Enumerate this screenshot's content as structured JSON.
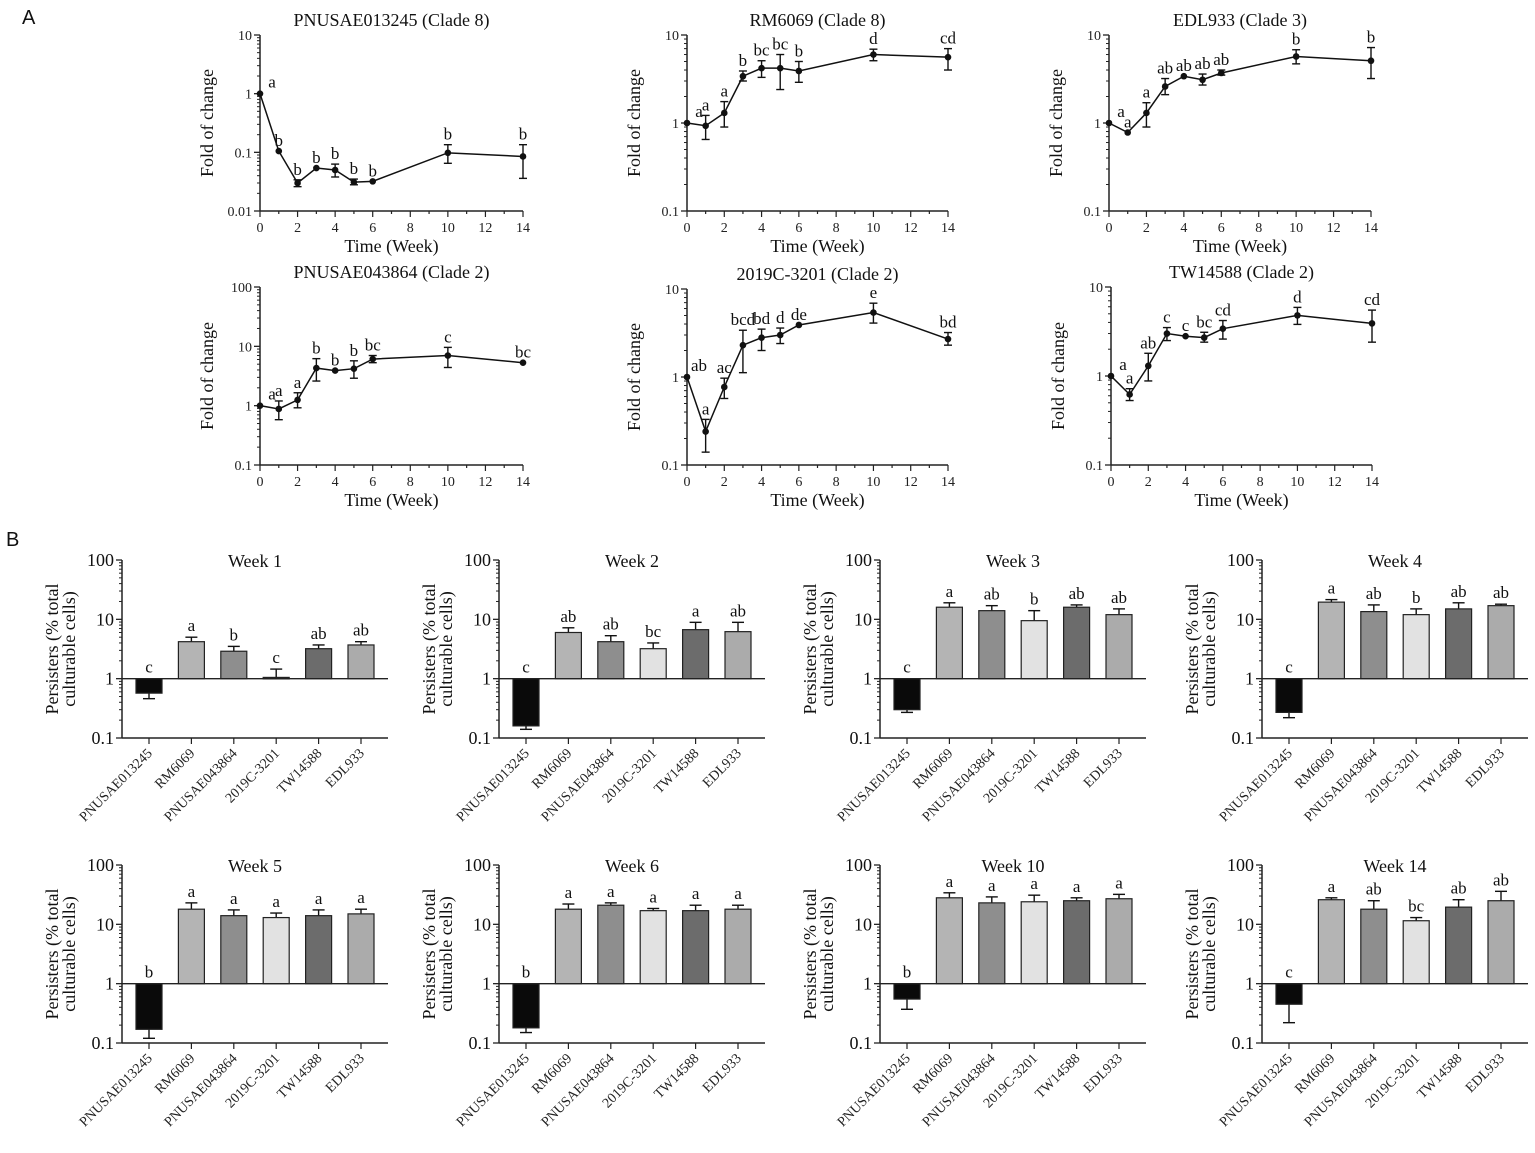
{
  "panels": {
    "a": "A",
    "b": "B"
  },
  "chart_data": {
    "line_charts": [
      {
        "type": "line",
        "title": "PNUSAE013245 (Clade 8)",
        "xlabel": "Time (Week)",
        "ylabel": "Fold of change",
        "yscale": "log",
        "ylim": [
          0.01,
          10
        ],
        "xlim": [
          0,
          14
        ],
        "yticks": [
          "0.01",
          "0.1",
          "1",
          "10"
        ],
        "xticks": [
          "0",
          "2",
          "4",
          "6",
          "8",
          "10",
          "12",
          "14"
        ],
        "x": [
          0,
          1,
          2,
          3,
          4,
          5,
          6,
          10,
          14
        ],
        "y": [
          1,
          0.105,
          0.03,
          0.054,
          0.05,
          0.031,
          0.032,
          0.098,
          0.085
        ],
        "err": [
          [
            1,
            1
          ],
          [
            0.105,
            0.105
          ],
          [
            0.026,
            0.034
          ],
          [
            0.054,
            0.054
          ],
          [
            0.038,
            0.063
          ],
          [
            0.028,
            0.035
          ],
          [
            0.032,
            0.032
          ],
          [
            0.065,
            0.135
          ],
          [
            0.036,
            0.135
          ]
        ],
        "letters": [
          "a",
          "b",
          "b",
          "b",
          "b",
          "b",
          "b",
          "b",
          "b"
        ]
      },
      {
        "type": "line",
        "title": "RM6069 (Clade 8)",
        "xlabel": "Time (Week)",
        "ylabel": "Fold of change",
        "yscale": "log",
        "ylim": [
          0.1,
          10
        ],
        "xlim": [
          0,
          14
        ],
        "yticks": [
          "0.1",
          "1",
          "10"
        ],
        "xticks": [
          "0",
          "2",
          "4",
          "6",
          "8",
          "10",
          "12",
          "14"
        ],
        "x": [
          0,
          1,
          2,
          3,
          4,
          5,
          6,
          10,
          14
        ],
        "y": [
          1,
          0.93,
          1.3,
          3.4,
          4.2,
          4.2,
          3.9,
          6.0,
          5.6
        ],
        "err": [
          [
            1,
            1
          ],
          [
            0.65,
            1.22
          ],
          [
            0.9,
            1.75
          ],
          [
            3.0,
            3.9
          ],
          [
            3.3,
            5.1
          ],
          [
            2.4,
            6.0
          ],
          [
            2.9,
            5.0
          ],
          [
            5.1,
            6.9
          ],
          [
            4.0,
            7.0
          ]
        ],
        "letters": [
          "a",
          "a",
          "a",
          "b",
          "bc",
          "bc",
          "b",
          "d",
          "cd"
        ]
      },
      {
        "type": "line",
        "title": "EDL933 (Clade 3)",
        "xlabel": "Time (Week)",
        "ylabel": "Fold of change",
        "yscale": "log",
        "ylim": [
          0.1,
          10
        ],
        "xlim": [
          0,
          14
        ],
        "yticks": [
          "0.1",
          "1",
          "10"
        ],
        "xticks": [
          "0",
          "2",
          "4",
          "6",
          "8",
          "10",
          "12",
          "14"
        ],
        "x": [
          0,
          1,
          2,
          3,
          4,
          5,
          6,
          10,
          14
        ],
        "y": [
          1,
          0.78,
          1.3,
          2.6,
          3.4,
          3.1,
          3.7,
          5.7,
          5.1
        ],
        "err": [
          [
            1,
            1
          ],
          [
            0.78,
            0.78
          ],
          [
            0.9,
            1.7
          ],
          [
            2.1,
            3.2
          ],
          [
            3.4,
            3.4
          ],
          [
            2.7,
            3.6
          ],
          [
            3.5,
            4.0
          ],
          [
            4.7,
            6.8
          ],
          [
            3.2,
            7.2
          ]
        ],
        "letters": [
          "a",
          "a",
          "a",
          "ab",
          "ab",
          "ab",
          "ab",
          "b",
          "b"
        ]
      },
      {
        "type": "line",
        "title": "PNUSAE043864 (Clade 2)",
        "xlabel": "Time (Week)",
        "ylabel": "Fold of change",
        "yscale": "log",
        "ylim": [
          0.1,
          100
        ],
        "xlim": [
          0,
          14
        ],
        "yticks": [
          "0.1",
          "1",
          "10",
          "100"
        ],
        "xticks": [
          "0",
          "2",
          "4",
          "6",
          "8",
          "10",
          "12",
          "14"
        ],
        "x": [
          0,
          1,
          2,
          3,
          4,
          5,
          6,
          10,
          14
        ],
        "y": [
          1,
          0.88,
          1.25,
          4.3,
          3.9,
          4.2,
          6.1,
          7.0,
          5.3
        ],
        "err": [
          [
            1,
            1
          ],
          [
            0.58,
            1.2
          ],
          [
            0.92,
            1.65
          ],
          [
            2.6,
            6.2
          ],
          [
            3.9,
            3.9
          ],
          [
            2.9,
            5.7
          ],
          [
            5.3,
            7.0
          ],
          [
            4.4,
            9.6
          ],
          [
            5.3,
            5.3
          ]
        ],
        "letters": [
          "a",
          "a",
          "a",
          "b",
          "b",
          "b",
          "bc",
          "c",
          "bc"
        ]
      },
      {
        "type": "line",
        "title": "2019C-3201 (Clade 2)",
        "xlabel": "Time (Week)",
        "ylabel": "Fold of change",
        "yscale": "log",
        "ylim": [
          0.1,
          10
        ],
        "xlim": [
          0,
          14
        ],
        "yticks": [
          "0.1",
          "1",
          "10"
        ],
        "xticks": [
          "0",
          "2",
          "4",
          "6",
          "8",
          "10",
          "12",
          "14"
        ],
        "x": [
          0,
          1,
          2,
          3,
          4,
          5,
          6,
          10,
          14
        ],
        "y": [
          1,
          0.24,
          0.77,
          2.3,
          2.8,
          3.0,
          3.9,
          5.4,
          2.7
        ],
        "err": [
          [
            1,
            1
          ],
          [
            0.14,
            0.33
          ],
          [
            0.57,
            0.97
          ],
          [
            1.12,
            3.4
          ],
          [
            2.0,
            3.5
          ],
          [
            2.4,
            3.6
          ],
          [
            3.9,
            3.9
          ],
          [
            4.1,
            6.9
          ],
          [
            2.3,
            3.2
          ]
        ],
        "letters": [
          "ab",
          "a",
          "ac",
          "bcd",
          "bd",
          "d",
          "de",
          "e",
          "bd"
        ]
      },
      {
        "type": "line",
        "title": "TW14588 (Clade 2)",
        "xlabel": "Time (Week)",
        "ylabel": "Fold of change",
        "yscale": "log",
        "ylim": [
          0.1,
          10
        ],
        "xlim": [
          0,
          14
        ],
        "yticks": [
          "0.1",
          "1",
          "10"
        ],
        "xticks": [
          "0",
          "2",
          "4",
          "6",
          "8",
          "10",
          "12",
          "14"
        ],
        "x": [
          0,
          1,
          2,
          3,
          4,
          5,
          6,
          10,
          14
        ],
        "y": [
          1,
          0.62,
          1.3,
          3.0,
          2.8,
          2.7,
          3.4,
          4.8,
          3.9
        ],
        "err": [
          [
            1,
            1
          ],
          [
            0.53,
            0.72
          ],
          [
            0.88,
            1.8
          ],
          [
            2.5,
            3.5
          ],
          [
            2.8,
            2.8
          ],
          [
            2.4,
            3.1
          ],
          [
            2.6,
            4.2
          ],
          [
            3.8,
            5.9
          ],
          [
            2.4,
            5.5
          ]
        ],
        "letters": [
          "a",
          "a",
          "ab",
          "c",
          "c",
          "bc",
          "cd",
          "d",
          "cd"
        ]
      }
    ],
    "bar_common": {
      "type": "bar",
      "yscale": "log",
      "ylim": [
        0.1,
        100
      ],
      "baseline": 1,
      "ylabel_lines": [
        "Persisters (% total",
        "culturable cells)"
      ],
      "yticks": [
        "0.1",
        "1",
        "10",
        "100"
      ],
      "categories": [
        "PNUSAE013245",
        "RM6069",
        "PNUSAE043864",
        "2019C-3201",
        "TW14588",
        "EDL933"
      ],
      "colors": [
        "#0a0a0a",
        "#b4b4b4",
        "#8e8e8e",
        "#e2e2e2",
        "#6c6c6c",
        "#ababab"
      ]
    },
    "bar_charts": [
      {
        "title": "Week 1",
        "values": [
          0.57,
          4.2,
          2.9,
          1.05,
          3.2,
          3.7
        ],
        "err_end": [
          0.46,
          5.0,
          3.5,
          1.45,
          3.7,
          4.2
        ],
        "letters": [
          "c",
          "a",
          "b",
          "c",
          "ab",
          "ab"
        ]
      },
      {
        "title": "Week 2",
        "values": [
          0.16,
          6.0,
          4.2,
          3.2,
          6.7,
          6.2
        ],
        "err_end": [
          0.14,
          7.2,
          5.3,
          4.0,
          8.9,
          8.9
        ],
        "letters": [
          "c",
          "ab",
          "ab",
          "bc",
          "a",
          "ab"
        ]
      },
      {
        "title": "Week 3",
        "values": [
          0.3,
          16,
          14,
          9.5,
          16,
          12
        ],
        "err_end": [
          0.27,
          19,
          17,
          14,
          17.5,
          15
        ],
        "letters": [
          "c",
          "a",
          "ab",
          "b",
          "ab",
          "ab"
        ]
      },
      {
        "title": "Week 4",
        "values": [
          0.27,
          19.5,
          13.5,
          12,
          15,
          17
        ],
        "err_end": [
          0.22,
          21.5,
          17.5,
          15,
          19,
          18
        ],
        "letters": [
          "c",
          "a",
          "ab",
          "b",
          "ab",
          "ab"
        ]
      },
      {
        "title": "Week 5",
        "values": [
          0.17,
          18,
          14,
          13,
          14,
          15
        ],
        "err_end": [
          0.12,
          23,
          17.5,
          15.5,
          17.5,
          18
        ],
        "letters": [
          "b",
          "a",
          "a",
          "a",
          "a",
          "a"
        ]
      },
      {
        "title": "Week 6",
        "values": [
          0.18,
          18,
          21,
          17,
          17,
          18
        ],
        "err_end": [
          0.15,
          22,
          23,
          18.5,
          21,
          21
        ],
        "letters": [
          "b",
          "a",
          "a",
          "a",
          "a",
          "a"
        ]
      },
      {
        "title": "Week 10",
        "values": [
          0.55,
          28,
          23,
          24,
          25,
          27
        ],
        "err_end": [
          0.37,
          34,
          29,
          31,
          28,
          32
        ],
        "letters": [
          "b",
          "a",
          "a",
          "a",
          "a",
          "a"
        ]
      },
      {
        "title": "Week 14",
        "values": [
          0.45,
          26,
          18,
          11.5,
          19.5,
          25
        ],
        "err_end": [
          0.22,
          28,
          25,
          13,
          26,
          36
        ],
        "letters": [
          "c",
          "a",
          "ab",
          "bc",
          "ab",
          "ab"
        ]
      }
    ]
  }
}
